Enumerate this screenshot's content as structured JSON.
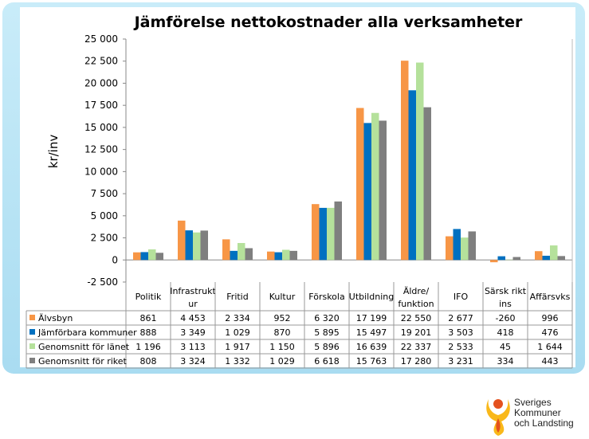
{
  "chart_data": {
    "type": "bar",
    "title": "Jämförelse nettokostnader alla verksamheter",
    "ylabel": "kr/inv",
    "xlabel": "",
    "ylim": [
      -2500,
      25000
    ],
    "yticks": [
      -2500,
      0,
      2500,
      5000,
      7500,
      10000,
      12500,
      15000,
      17500,
      20000,
      22500,
      25000
    ],
    "ytick_labels": [
      "-2 500",
      "0",
      "2 500",
      "5 000",
      "7 500",
      "10 000",
      "12 500",
      "15 000",
      "17 500",
      "20 000",
      "22 500",
      "25 000"
    ],
    "grid": false,
    "legend": "data-table-below",
    "categories": [
      "Politik",
      "Infrastrukt ur",
      "Fritid",
      "Kultur",
      "Förskola",
      "Utbildning",
      "Äldre/ funktion",
      "IFO",
      "Särsk rikt ins",
      "Affärsvks"
    ],
    "series": [
      {
        "name": "Älvsbyn",
        "color": "#F79646",
        "values": [
          861,
          4453,
          2334,
          952,
          6320,
          17199,
          22550,
          2677,
          -260,
          996
        ],
        "labels": [
          "861",
          "4 453",
          "2 334",
          "952",
          "6 320",
          "17 199",
          "22 550",
          "2 677",
          "-260",
          "996"
        ]
      },
      {
        "name": "Jämförbara kommuner",
        "color": "#0070C0",
        "values": [
          888,
          3349,
          1029,
          870,
          5895,
          15497,
          19201,
          3503,
          418,
          476
        ],
        "labels": [
          "888",
          "3 349",
          "1 029",
          "870",
          "5 895",
          "15 497",
          "19 201",
          "3 503",
          "418",
          "476"
        ]
      },
      {
        "name": "Genomsnitt för länet",
        "color": "#B5E19B",
        "values": [
          1196,
          3113,
          1917,
          1150,
          5896,
          16639,
          22337,
          2533,
          45,
          1644
        ],
        "labels": [
          "1 196",
          "3 113",
          "1 917",
          "1 150",
          "5 896",
          "16 639",
          "22 337",
          "2 533",
          "45",
          "1 644"
        ]
      },
      {
        "name": "Genomsnitt för riket",
        "color": "#7F7F7F",
        "values": [
          808,
          3324,
          1332,
          1029,
          6618,
          15763,
          17280,
          3231,
          334,
          443
        ],
        "labels": [
          "808",
          "3 324",
          "1 332",
          "1 029",
          "6 618",
          "15 763",
          "17 280",
          "3 231",
          "334",
          "443"
        ]
      }
    ]
  },
  "logo": {
    "lines": [
      "Sveriges",
      "Kommuner",
      "och Landsting"
    ]
  }
}
